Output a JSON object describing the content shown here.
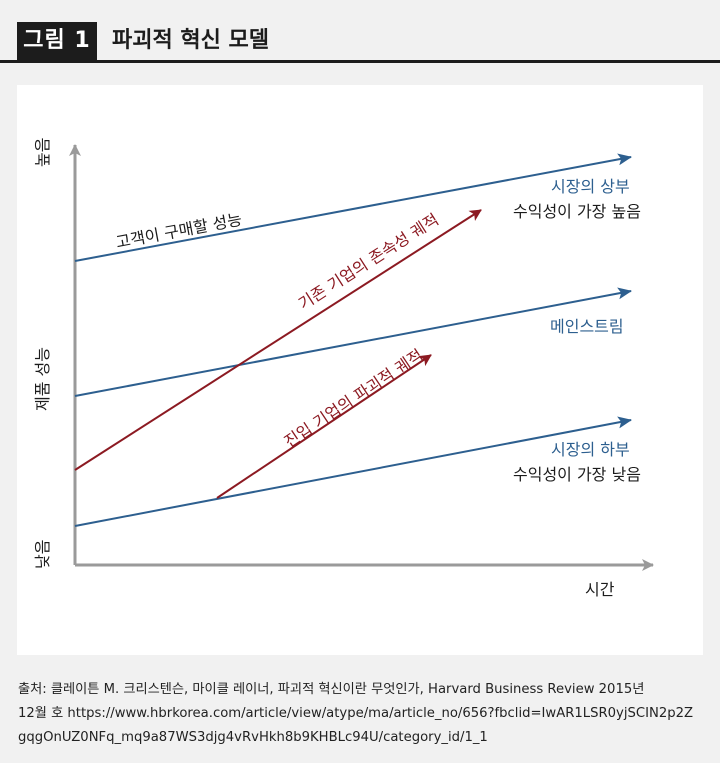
{
  "header": {
    "badge": "그림 1",
    "title": "파괴적 혁신 모델"
  },
  "diagram": {
    "axes": {
      "y_label": "제품 성능",
      "y_high": "높음",
      "y_low": "낮음",
      "x_label": "시간"
    },
    "lines": {
      "customer_demand": "고객이 구매할 성능",
      "incumbent": "기존 기업의 존속성 궤적",
      "entrant": "진입 기업의 파괴적 궤적"
    },
    "markets": {
      "high_name": "시장의 상부",
      "high_desc": "수익성이 가장 높음",
      "mainstream": "메인스트림",
      "low_name": "시장의 하부",
      "low_desc": "수익성이 가장 낮음"
    },
    "colors": {
      "blue": "#2d5f8f",
      "red": "#8c1a22",
      "axis": "#9a9a9a",
      "dark": "#1c1c1c",
      "panel": "#ffffff"
    }
  },
  "source": {
    "line1": "출처: 클레이튼 M. 크리스텐슨, 마이클 레이너, 파괴적 혁신이란 무엇인가, Harvard Business Review 2015년",
    "line2": "12월 호 https://www.hbrkorea.com/article/view/atype/ma/article_no/656?fbclid=IwAR1LSR0yjSCIN2p2Z",
    "line3": "gqgOnUZ0NFq_mq9a87WS3djg4vRvHkh8b9KHBLc94U/category_id/1_1"
  }
}
